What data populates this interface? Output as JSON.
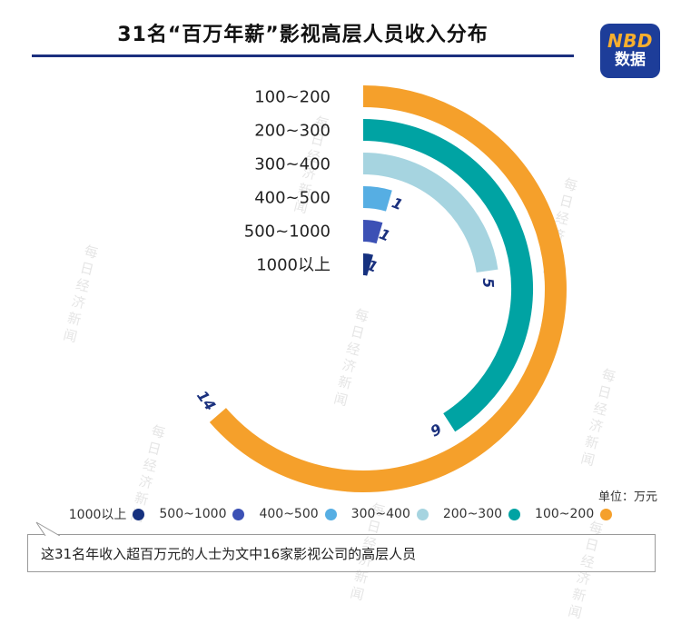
{
  "header": {
    "title": "31名“百万年薪”影视高层人员收入分布",
    "logo": {
      "line1": "NBD",
      "line2": "数据"
    }
  },
  "brand": {
    "navy": "#1B2F7E",
    "logo_bg": "#1D3D99",
    "logo_text": "#F8AF2E"
  },
  "chart_data": {
    "type": "radial-bar",
    "title": "31名“百万年薪”影视高层人员收入分布",
    "unit_label": "单位：万元",
    "categories": [
      "100~200",
      "200~300",
      "300~400",
      "400~500",
      "500~1000",
      "1000以上"
    ],
    "values": [
      14,
      9,
      5,
      1,
      1,
      1
    ],
    "colors": [
      "#F5A02B",
      "#00A3A3",
      "#A6D4E0",
      "#56AEE3",
      "#3C51B5",
      "#16317F"
    ],
    "angle_per_unit_deg": 16.36,
    "start_angle": "top, clockwise",
    "value_label_color": "#1B317E",
    "legend_position": "bottom",
    "legend": [
      {
        "label": "1000以上",
        "color": "#16317F"
      },
      {
        "label": "500~1000",
        "color": "#3C51B5"
      },
      {
        "label": "400~500",
        "color": "#56AEE3"
      },
      {
        "label": "300~400",
        "color": "#A6D4E0"
      },
      {
        "label": "200~300",
        "color": "#00A3A3"
      },
      {
        "label": "100~200",
        "color": "#F5A02B"
      }
    ]
  },
  "footer": {
    "note": "这31名年收入超百万元的人士为文中16家影视公司的高层人员"
  },
  "watermark": {
    "text": "每日经济新闻"
  }
}
